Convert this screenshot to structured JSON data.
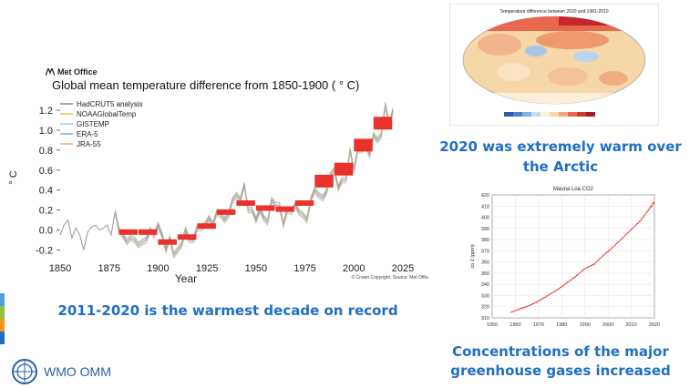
{
  "left_panel": {
    "logo_text": "Met Office",
    "title": "Global mean temperature difference from 1850-1900 ( ° C)",
    "legend": [
      "HadCRUT5 analysis",
      "NOAAGlobalTemp",
      "GISTEMP",
      "ERA-5",
      "JRA-55"
    ],
    "caption": "2011-2020 is the warmest decade on record"
  },
  "right_top": {
    "map_title": "Temperature difference between 2020 and 1981-2010",
    "caption": "2020 was extremely warm over the Arctic"
  },
  "right_bottom": {
    "caption": "Concentrations of the major greenhouse gases increased"
  },
  "footer": {
    "org": "WMO OMM"
  },
  "colors": {
    "caption_blue": "#1f6fc4",
    "decade_red": "#e8322b"
  },
  "chart_data": [
    {
      "type": "line",
      "title": "Global mean temperature difference from 1850-1900 ( ° C)",
      "xlabel": "Year",
      "ylabel": "° C",
      "xlim": [
        1850,
        2025
      ],
      "ylim": [
        -0.25,
        1.3
      ],
      "xticks": [
        "1850",
        "1875",
        "1900",
        "1925",
        "1950",
        "1975",
        "2000",
        "2025"
      ],
      "yticks": [
        "-0.2",
        "0.0",
        "0.2",
        "0.4",
        "0.6",
        "0.8",
        "1.0",
        "1.2"
      ],
      "series_names": [
        "HadCRUT5 analysis",
        "NOAAGlobalTemp",
        "GISTEMP",
        "ERA-5",
        "JRA-55"
      ],
      "annual_hadcrut": [
        [
          1850,
          -0.05
        ],
        [
          1852,
          0.05
        ],
        [
          1854,
          0.1
        ],
        [
          1856,
          -0.08
        ],
        [
          1858,
          0.02
        ],
        [
          1860,
          -0.05
        ],
        [
          1862,
          -0.2
        ],
        [
          1864,
          -0.02
        ],
        [
          1866,
          0.03
        ],
        [
          1868,
          0.05
        ],
        [
          1870,
          0.0
        ],
        [
          1872,
          0.02
        ],
        [
          1874,
          0.05
        ],
        [
          1876,
          -0.05
        ],
        [
          1878,
          0.18
        ],
        [
          1880,
          0.0
        ],
        [
          1882,
          -0.05
        ],
        [
          1884,
          -0.12
        ],
        [
          1886,
          -0.08
        ],
        [
          1888,
          -0.1
        ],
        [
          1890,
          -0.15
        ],
        [
          1892,
          -0.12
        ],
        [
          1894,
          -0.1
        ],
        [
          1896,
          0.0
        ],
        [
          1898,
          -0.05
        ],
        [
          1900,
          0.05
        ],
        [
          1902,
          -0.05
        ],
        [
          1904,
          -0.2
        ],
        [
          1906,
          -0.08
        ],
        [
          1908,
          -0.25
        ],
        [
          1910,
          -0.2
        ],
        [
          1912,
          -0.15
        ],
        [
          1914,
          0.0
        ],
        [
          1916,
          -0.1
        ],
        [
          1918,
          -0.1
        ],
        [
          1920,
          0.02
        ],
        [
          1922,
          0.02
        ],
        [
          1924,
          0.05
        ],
        [
          1926,
          0.12
        ],
        [
          1928,
          0.05
        ],
        [
          1930,
          0.18
        ],
        [
          1932,
          0.15
        ],
        [
          1934,
          0.1
        ],
        [
          1936,
          0.15
        ],
        [
          1938,
          0.3
        ],
        [
          1940,
          0.35
        ],
        [
          1942,
          0.3
        ],
        [
          1944,
          0.45
        ],
        [
          1946,
          0.2
        ],
        [
          1948,
          0.2
        ],
        [
          1950,
          0.1
        ],
        [
          1952,
          0.2
        ],
        [
          1954,
          0.12
        ],
        [
          1956,
          0.08
        ],
        [
          1958,
          0.3
        ],
        [
          1960,
          0.25
        ],
        [
          1962,
          0.25
        ],
        [
          1964,
          0.05
        ],
        [
          1966,
          0.2
        ],
        [
          1968,
          0.18
        ],
        [
          1970,
          0.25
        ],
        [
          1972,
          0.18
        ],
        [
          1974,
          0.15
        ],
        [
          1976,
          0.1
        ],
        [
          1978,
          0.3
        ],
        [
          1980,
          0.4
        ],
        [
          1982,
          0.35
        ],
        [
          1984,
          0.32
        ],
        [
          1986,
          0.38
        ],
        [
          1988,
          0.55
        ],
        [
          1990,
          0.6
        ],
        [
          1992,
          0.42
        ],
        [
          1994,
          0.5
        ],
        [
          1996,
          0.5
        ],
        [
          1998,
          0.8
        ],
        [
          2000,
          0.6
        ],
        [
          2002,
          0.8
        ],
        [
          2004,
          0.8
        ],
        [
          2006,
          0.85
        ],
        [
          2008,
          0.75
        ],
        [
          2010,
          0.95
        ],
        [
          2012,
          0.9
        ],
        [
          2014,
          0.95
        ],
        [
          2016,
          1.25
        ],
        [
          2018,
          1.05
        ],
        [
          2020,
          1.2
        ]
      ],
      "decadal_means": [
        {
          "start": 1880,
          "end": 1890,
          "value": -0.02
        },
        {
          "start": 1890,
          "end": 1900,
          "value": -0.02
        },
        {
          "start": 1900,
          "end": 1910,
          "value": -0.12
        },
        {
          "start": 1910,
          "end": 1920,
          "value": -0.07
        },
        {
          "start": 1920,
          "end": 1930,
          "value": 0.04
        },
        {
          "start": 1930,
          "end": 1940,
          "value": 0.18
        },
        {
          "start": 1940,
          "end": 1950,
          "value": 0.27
        },
        {
          "start": 1950,
          "end": 1960,
          "value": 0.22
        },
        {
          "start": 1960,
          "end": 1970,
          "value": 0.21
        },
        {
          "start": 1970,
          "end": 1980,
          "value": 0.27
        },
        {
          "start": 1980,
          "end": 1990,
          "value": 0.49
        },
        {
          "start": 1990,
          "end": 2000,
          "value": 0.61
        },
        {
          "start": 2000,
          "end": 2010,
          "value": 0.85
        },
        {
          "start": 2010,
          "end": 2020,
          "value": 1.07
        }
      ],
      "copyright": "© Crown Copyright. Source: Met Office"
    },
    {
      "type": "line",
      "title": "Mauna Loa CO2",
      "xlabel": "",
      "ylabel": "co 2 (ppm)",
      "xlim": [
        1950,
        2020
      ],
      "ylim": [
        310,
        420
      ],
      "xticks": [
        "1950",
        "1960",
        "1970",
        "1980",
        "1990",
        "2000",
        "2010",
        "2020"
      ],
      "yticks": [
        "310",
        "320",
        "330",
        "340",
        "350",
        "360",
        "370",
        "380",
        "390",
        "400",
        "410",
        "420"
      ],
      "values": [
        [
          1958,
          315
        ],
        [
          1962,
          318
        ],
        [
          1966,
          321
        ],
        [
          1970,
          325
        ],
        [
          1974,
          330
        ],
        [
          1978,
          335
        ],
        [
          1982,
          341
        ],
        [
          1986,
          347
        ],
        [
          1990,
          354
        ],
        [
          1994,
          358
        ],
        [
          1998,
          366
        ],
        [
          2002,
          373
        ],
        [
          2006,
          381
        ],
        [
          2010,
          389
        ],
        [
          2014,
          397
        ],
        [
          2018,
          408
        ],
        [
          2020,
          414
        ]
      ]
    }
  ]
}
